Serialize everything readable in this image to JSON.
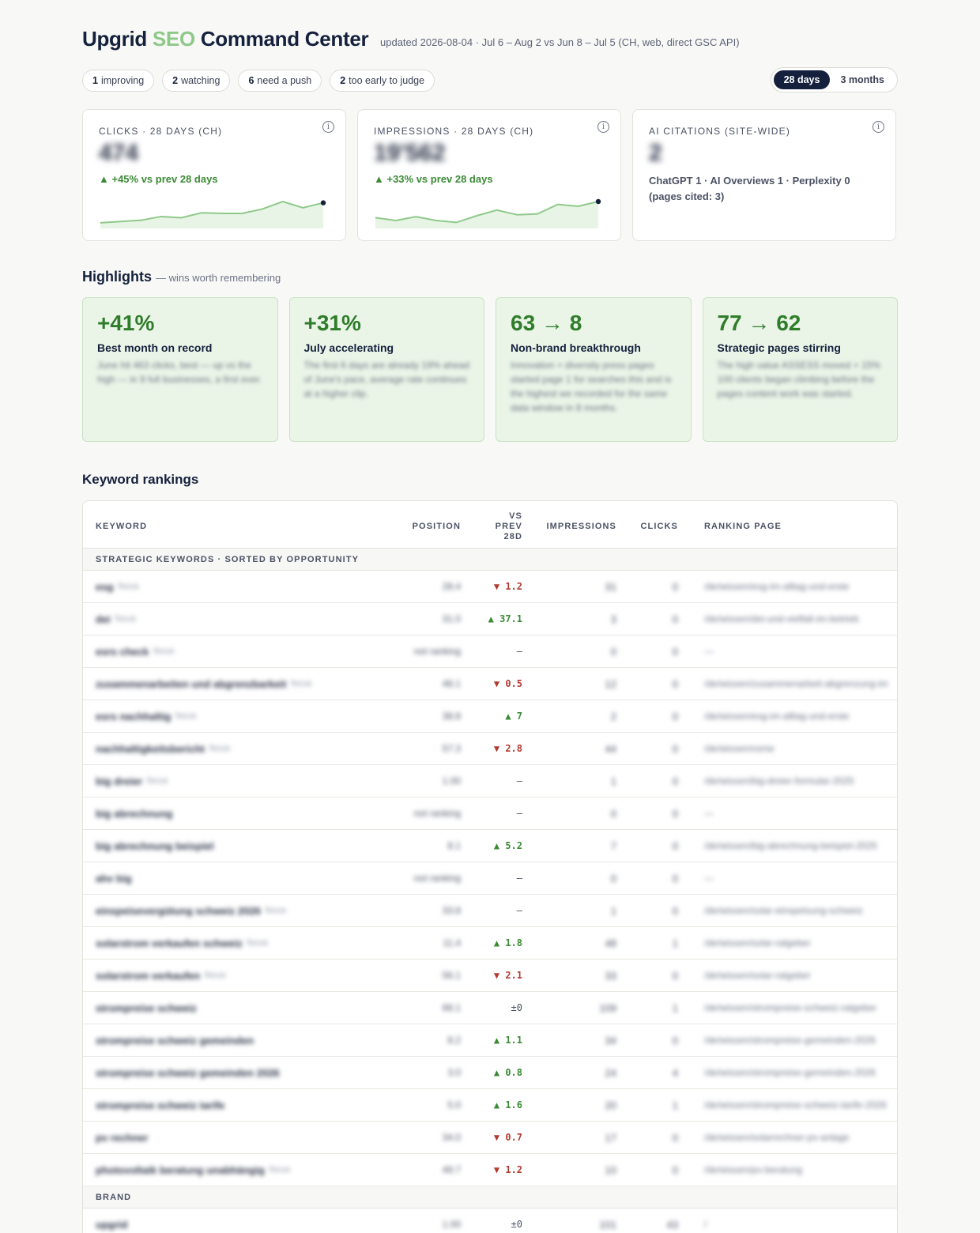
{
  "header": {
    "title_a": "Upgrid ",
    "title_b": "SEO",
    "title_c": " Command Center",
    "updated": "updated 2026-08-04 · Jul 6 – Aug 2 vs Jun 8 – Jul 5 (CH, web, direct GSC API)"
  },
  "chips": [
    {
      "count": "1",
      "label": "improving"
    },
    {
      "count": "2",
      "label": "watching"
    },
    {
      "count": "6",
      "label": "need a push"
    },
    {
      "count": "2",
      "label": "too early to judge"
    }
  ],
  "range": {
    "active": "28 days",
    "other": "3 months"
  },
  "kpis": {
    "clicks": {
      "label": "CLICKS · 28 DAYS (CH)",
      "value": "474",
      "delta": "▲ +45% vs prev 28 days",
      "spark": [
        2,
        3,
        4,
        7,
        6,
        10,
        9.5,
        9.5,
        13,
        19,
        14,
        18
      ]
    },
    "impressions": {
      "label": "IMPRESSIONS · 28 DAYS (CH)",
      "value": "19'562",
      "delta": "▲ +33% vs prev 28 days",
      "spark": [
        8,
        5,
        9,
        5,
        3,
        10,
        16,
        11,
        12,
        22,
        20,
        25
      ]
    },
    "ai": {
      "label": "AI CITATIONS (SITE-WIDE)",
      "value": "2",
      "sub_1": "ChatGPT 1 · AI Overviews 1 · Perplexity 0",
      "sub_2": "(pages cited: 3)"
    }
  },
  "highlights": {
    "title": "Highlights",
    "subtitle": "— wins worth remembering",
    "cards": [
      {
        "big": "+41%",
        "head": "Best month on record",
        "body": "June hit 463 clicks, best — up vs the high — in 9 full businesses, a first ever."
      },
      {
        "big": "+31%",
        "head": "July accelerating",
        "body": "The first 6 days are already 19% ahead of June's pace, average rate continues at a higher clip."
      },
      {
        "big": "63 → 8",
        "head": "Non-brand breakthrough",
        "body": "Innovation + diversity press pages started page 1 for searches this and is the highest we recorded for the same data window in 8 months."
      },
      {
        "big": "77 → 62",
        "head": "Strategic pages stirring",
        "body": "The high value ASSESS moved + 15% 100 clients began climbing before the pages content work was started."
      }
    ]
  },
  "keywords": {
    "title": "Keyword rankings",
    "columns": {
      "keyword": "KEYWORD",
      "position": "POSITION",
      "vs_1": "VS",
      "vs_2": "PREV",
      "vs_3": "28D",
      "impressions": "IMPRESSIONS",
      "clicks": "CLICKS",
      "page": "RANKING PAGE"
    },
    "section_strategic": "STRATEGIC KEYWORDS · SORTED BY OPPORTUNITY",
    "section_brand": "BRAND",
    "rows": [
      {
        "kw": "esg",
        "tag": "focus",
        "pos": "28.4",
        "vs": "▼ 1.2",
        "dir": "down",
        "imp": "31",
        "clk": "0",
        "page": "/de/wissen/esg-im-alltag-und-erste"
      },
      {
        "kw": "dei",
        "tag": "focus",
        "pos": "31.0",
        "vs": "▲ 37.1",
        "dir": "up",
        "imp": "3",
        "clk": "0",
        "page": "/de/wissen/dei-und-vielfalt-im-betrieb"
      },
      {
        "kw": "esrs check",
        "tag": "focus",
        "pos": "not ranking",
        "vs": "—",
        "dir": "flat",
        "imp": "0",
        "clk": "0",
        "page": "—"
      },
      {
        "kw": "zusammenarbeiten und abgrenzbarkeit",
        "tag": "focus",
        "pos": "48.1",
        "vs": "▼ 0.5",
        "dir": "down",
        "imp": "12",
        "clk": "0",
        "page": "/de/wissen/zusammenarbeit-abgrenzung-im"
      },
      {
        "kw": "esrs nachhaltig",
        "tag": "focus",
        "pos": "38.8",
        "vs": "▲ 7",
        "dir": "up",
        "imp": "2",
        "clk": "0",
        "page": "/de/wissen/esg-im-alltag-und-erste"
      },
      {
        "kw": "nachhaltigkeitsbericht",
        "tag": "focus",
        "pos": "57.3",
        "vs": "▼ 2.8",
        "dir": "down",
        "imp": "44",
        "clk": "0",
        "page": "/de/wissen/vsme"
      },
      {
        "kw": "big dreier",
        "tag": "focus",
        "pos": "1.00",
        "vs": "—",
        "dir": "flat",
        "imp": "1",
        "clk": "0",
        "page": "/de/wissen/big-dreier-formular-2025"
      },
      {
        "kw": "big abrechnung",
        "tag": "",
        "pos": "not ranking",
        "vs": "—",
        "dir": "flat",
        "imp": "0",
        "clk": "0",
        "page": "—"
      },
      {
        "kw": "big abrechnung beispiel",
        "tag": "",
        "pos": "8.1",
        "vs": "▲ 5.2",
        "dir": "up",
        "imp": "7",
        "clk": "0",
        "page": "/de/wissen/big-abrechnung-beispiel-2025"
      },
      {
        "kw": "ahv big",
        "tag": "",
        "pos": "not ranking",
        "vs": "—",
        "dir": "flat",
        "imp": "0",
        "clk": "0",
        "page": "—"
      },
      {
        "kw": "einspeisevergütung schweiz 2026",
        "tag": "focus",
        "pos": "33.8",
        "vs": "—",
        "dir": "flat",
        "imp": "1",
        "clk": "0",
        "page": "/de/wissen/solar-einspeisung-schweiz"
      },
      {
        "kw": "solarstrom verkaufen schweiz",
        "tag": "focus",
        "pos": "11.4",
        "vs": "▲ 1.8",
        "dir": "up",
        "imp": "48",
        "clk": "1",
        "page": "/de/wissen/solar-ratgeber"
      },
      {
        "kw": "solarstrom verkaufen",
        "tag": "focus",
        "pos": "56.1",
        "vs": "▼ 2.1",
        "dir": "down",
        "imp": "33",
        "clk": "0",
        "page": "/de/wissen/solar-ratgeber"
      },
      {
        "kw": "strompreise schweiz",
        "tag": "",
        "pos": "68.1",
        "vs": "±0",
        "dir": "flat",
        "imp": "109",
        "clk": "1",
        "page": "/de/wissen/strompreise-schweiz-ratgeber"
      },
      {
        "kw": "strompreise schweiz gemeinden",
        "tag": "",
        "pos": "8.2",
        "vs": "▲ 1.1",
        "dir": "up",
        "imp": "34",
        "clk": "0",
        "page": "/de/wissen/strompreise-gemeinden-2026"
      },
      {
        "kw": "strompreise schweiz gemeinden 2026",
        "tag": "",
        "pos": "3.0",
        "vs": "▲ 0.8",
        "dir": "up",
        "imp": "24",
        "clk": "4",
        "page": "/de/wissen/strompreise-gemeinden-2026"
      },
      {
        "kw": "strompreise schweiz tarife",
        "tag": "",
        "pos": "5.0",
        "vs": "▲ 1.6",
        "dir": "up",
        "imp": "20",
        "clk": "1",
        "page": "/de/wissen/strompreise-schweiz-tarife-2026"
      },
      {
        "kw": "pv rechner",
        "tag": "",
        "pos": "34.0",
        "vs": "▼ 0.7",
        "dir": "down",
        "imp": "17",
        "clk": "0",
        "page": "/de/wissen/solarrechner-pv-anlage"
      },
      {
        "kw": "photovoltaik beratung unabhängig",
        "tag": "focus",
        "pos": "49.7",
        "vs": "▼ 1.2",
        "dir": "down",
        "imp": "10",
        "clk": "0",
        "page": "/de/wissen/pv-beratung"
      }
    ],
    "brand_rows": [
      {
        "kw": "upgrid",
        "tag": "",
        "pos": "1.00",
        "vs": "±0",
        "dir": "flat",
        "imp": "101",
        "clk": "43",
        "page": "/"
      }
    ]
  },
  "colors": {
    "accent": "#8fc98a",
    "navy": "#14203c",
    "up": "#3b8a35",
    "down": "#b23a30",
    "highlight_bg": "#eaf5e8"
  }
}
